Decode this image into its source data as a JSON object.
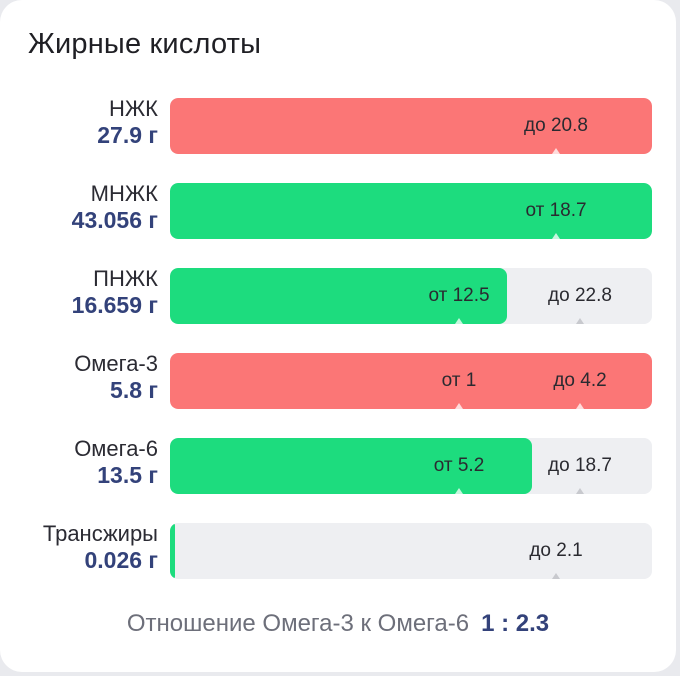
{
  "title": "Жирные кислоты",
  "colors": {
    "exceed": "#fb7676",
    "ok": "#1ddc7e",
    "track": "#eeeff2"
  },
  "rows": [
    {
      "name": "НЖК",
      "value": "27.9 г",
      "fill": 1.0,
      "status": "exceed",
      "markers": [
        {
          "text": "до 20.8",
          "pos": 0.8
        }
      ]
    },
    {
      "name": "МНЖК",
      "value": "43.056 г",
      "fill": 1.0,
      "status": "ok",
      "markers": [
        {
          "text": "от 18.7",
          "pos": 0.8
        }
      ]
    },
    {
      "name": "ПНЖК",
      "value": "16.659 г",
      "fill": 0.7,
      "status": "ok",
      "markers": [
        {
          "text": "от 12.5",
          "pos": 0.6
        },
        {
          "text": "до 22.8",
          "pos": 0.85
        }
      ]
    },
    {
      "name": "Омега-3",
      "value": "5.8 г",
      "fill": 1.0,
      "status": "exceed",
      "markers": [
        {
          "text": "от 1",
          "pos": 0.6
        },
        {
          "text": "до 4.2",
          "pos": 0.85
        }
      ]
    },
    {
      "name": "Омега-6",
      "value": "13.5 г",
      "fill": 0.75,
      "status": "ok",
      "markers": [
        {
          "text": "от 5.2",
          "pos": 0.6
        },
        {
          "text": "до 18.7",
          "pos": 0.85
        }
      ]
    },
    {
      "name": "Трансжиры",
      "value": "0.026 г",
      "fill": 0.01,
      "status": "ok",
      "markers": [
        {
          "text": "до 2.1",
          "pos": 0.8
        }
      ]
    }
  ],
  "ratio": {
    "label": "Отношение Омега-3 к Омега-6",
    "value": "1 : 2.3"
  }
}
